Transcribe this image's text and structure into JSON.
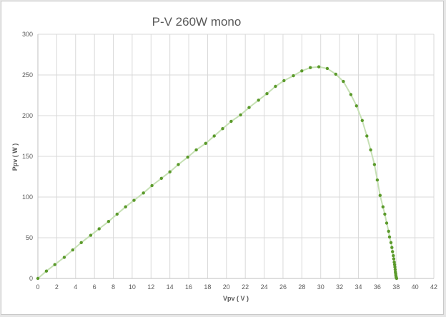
{
  "chart_data": {
    "type": "scatter",
    "title": "P-V 260W mono",
    "xlabel": "Vpv ( V )",
    "ylabel": "Ppv ( W )",
    "xlim": [
      0,
      42
    ],
    "ylim": [
      0,
      300
    ],
    "x_ticks": [
      "0",
      "2",
      "4",
      "6",
      "8",
      "10",
      "12",
      "14",
      "16",
      "18",
      "20",
      "22",
      "24",
      "26",
      "28",
      "30",
      "32",
      "34",
      "36",
      "38",
      "40",
      "42"
    ],
    "y_ticks": [
      "0",
      "50",
      "100",
      "150",
      "200",
      "250",
      "300"
    ],
    "grid": true,
    "legend": "none",
    "marker_color": "#5b9a2b",
    "line_color": "#c6e0b4",
    "series": [
      {
        "x": [
          0,
          0.9,
          1.8,
          2.8,
          3.7,
          4.6,
          5.6,
          6.5,
          7.5,
          8.4,
          9.3,
          10.2,
          11.2,
          12.1,
          13.1,
          14.0,
          14.9,
          15.9,
          16.8,
          17.8,
          18.7,
          19.6,
          20.5,
          21.5,
          22.4,
          23.4,
          24.3,
          25.2,
          26.1,
          27.1,
          28.0,
          28.9,
          29.8,
          30.7,
          31.6,
          32.4,
          33.2,
          33.8,
          34.4,
          34.9,
          35.3,
          35.7,
          36.0,
          36.3,
          36.6,
          36.8,
          37.0,
          37.2,
          37.3,
          37.45,
          37.55,
          37.62,
          37.7,
          37.75,
          37.8,
          37.84,
          37.87,
          37.9,
          37.92,
          37.95,
          37.97,
          38.0,
          38.02,
          38.05
        ],
        "y": [
          0,
          9,
          17,
          26,
          35,
          44,
          53,
          61,
          70,
          79,
          88,
          96,
          105,
          114,
          123,
          131,
          140,
          149,
          158,
          166,
          175,
          184,
          193,
          201,
          210,
          219,
          227,
          236,
          243,
          249,
          255,
          259,
          260,
          258,
          251,
          242,
          226,
          212,
          194,
          175,
          158,
          140,
          121,
          102,
          88,
          79,
          68,
          58,
          51,
          44,
          38,
          33,
          28,
          24,
          20,
          17,
          14,
          11,
          8,
          6,
          4,
          2,
          1,
          0
        ]
      }
    ]
  }
}
